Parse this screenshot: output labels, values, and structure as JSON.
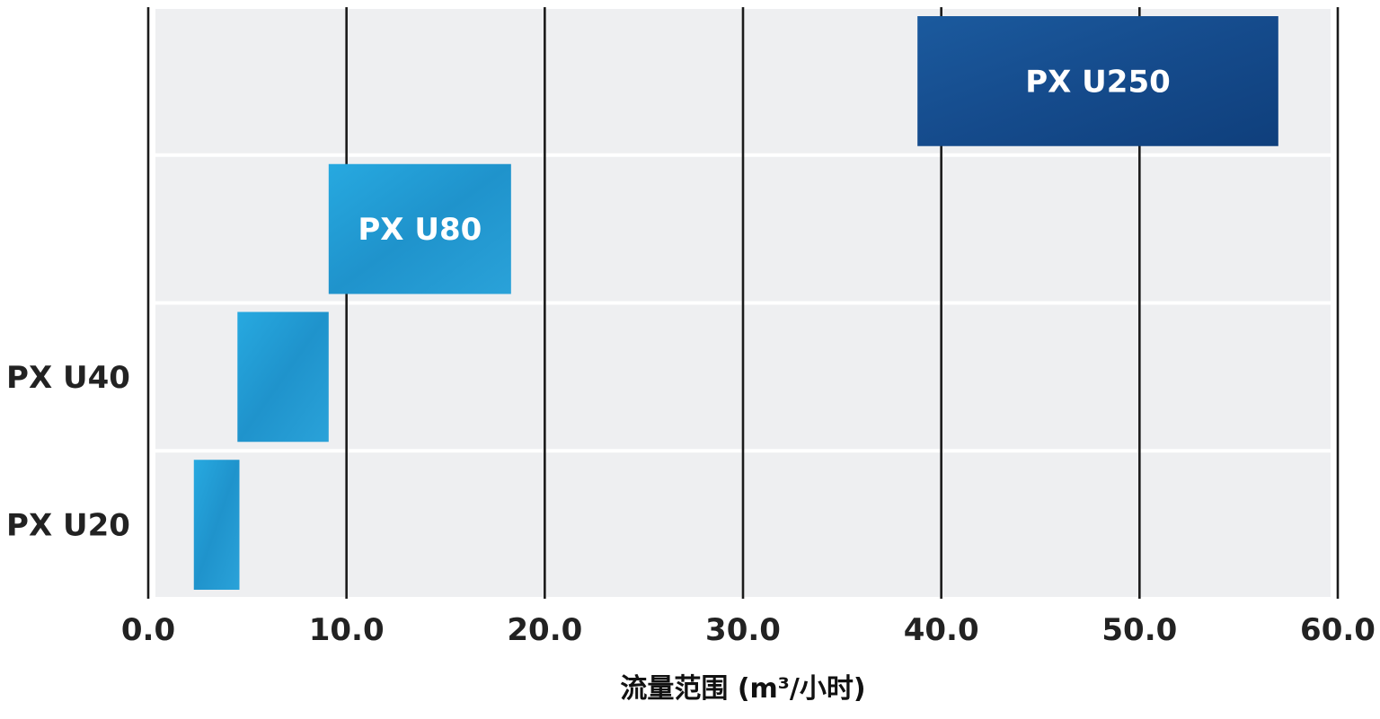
{
  "chart_data": {
    "type": "bar",
    "orientation": "horizontal-range",
    "categories": [
      "PX U20",
      "PX U40",
      "PX U80",
      "PX U250"
    ],
    "category_labels_shown": [
      "PX U20",
      "PX U40",
      "",
      ""
    ],
    "bar_labels_shown": [
      "",
      "",
      "PX U80",
      "PX U250"
    ],
    "ranges": [
      {
        "name": "PX U20",
        "min": 2.3,
        "max": 4.6
      },
      {
        "name": "PX U40",
        "min": 4.5,
        "max": 9.1
      },
      {
        "name": "PX U80",
        "min": 9.1,
        "max": 18.3
      },
      {
        "name": "PX U250",
        "min": 38.8,
        "max": 57.0
      }
    ],
    "colors": [
      "#2b9fd6",
      "#22a3dc",
      "#2aa0d8",
      "#134789"
    ],
    "xlabel": "流量范围 (m³/小时)",
    "xlim": [
      0,
      60
    ],
    "xticks": [
      "0.0",
      "10.0",
      "20.0",
      "30.0",
      "40.0",
      "50.0",
      "60.0"
    ],
    "grid": "vertical"
  }
}
